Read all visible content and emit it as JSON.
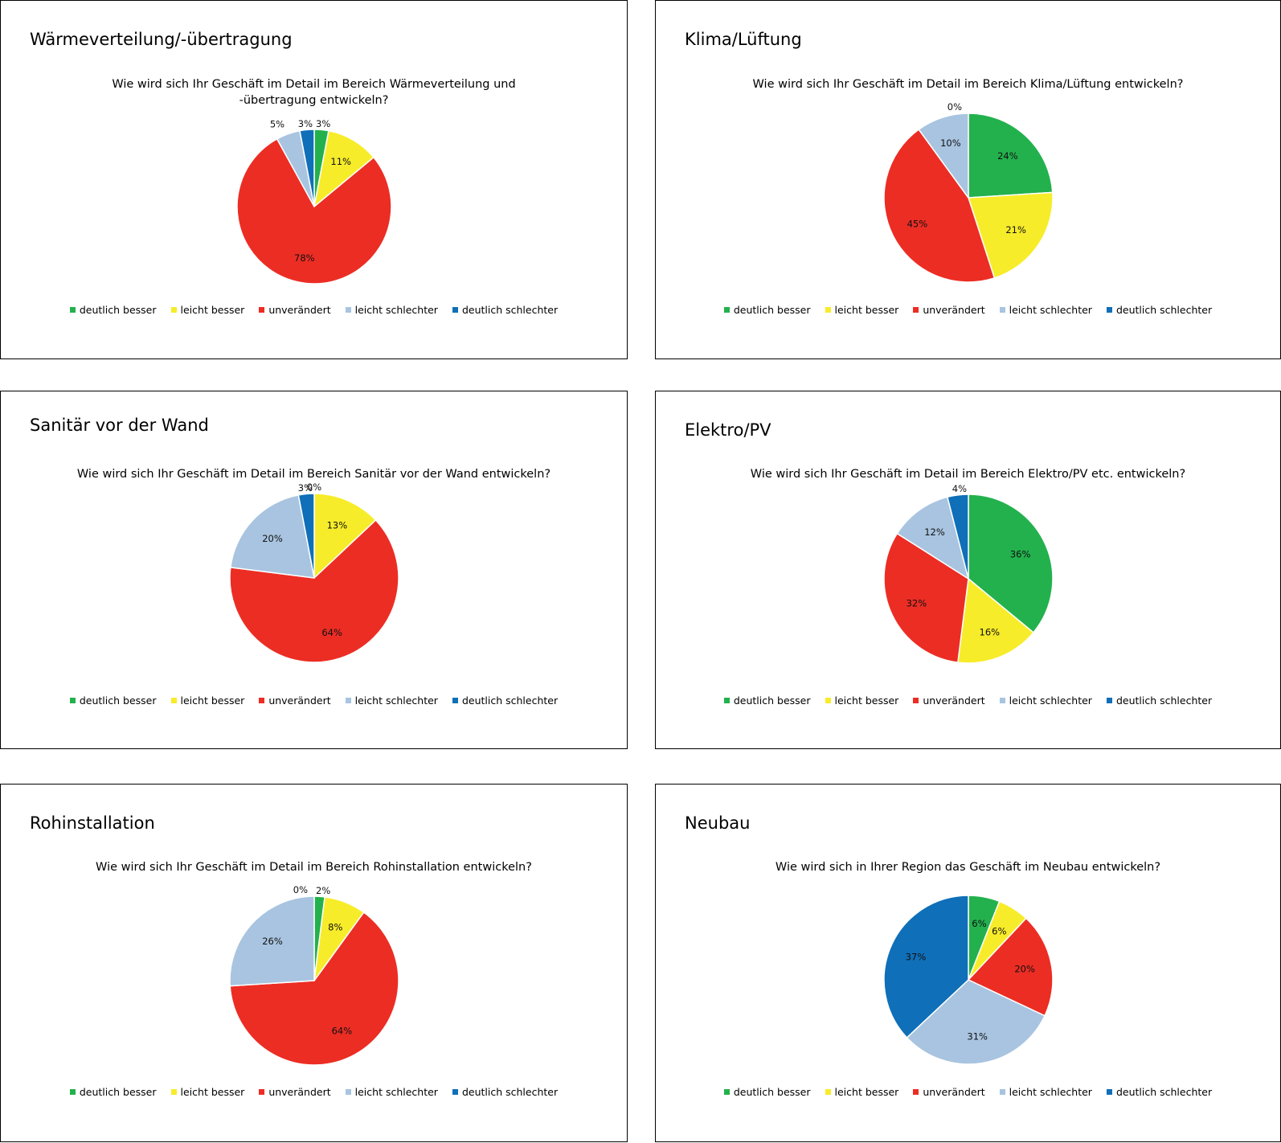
{
  "legend_labels": [
    "deutlich besser",
    "leicht besser",
    "unverändert",
    "leicht schlechter",
    "deutlich schlechter"
  ],
  "colors": [
    "#23b14d",
    "#f7ec2a",
    "#ec2d24",
    "#a8c4e0",
    "#0f6fb8"
  ],
  "panels": [
    {
      "heading": "Wärmeverteilung/-übertragung",
      "title": "Wie wird sich Ihr Geschäft im Detail im Bereich Wärmeverteilung und -übertragung entwickeln?"
    },
    {
      "heading": "Klima/Lüftung",
      "title": "Wie wird sich Ihr Geschäft im Detail im Bereich Klima/Lüftung entwickeln?"
    },
    {
      "heading": "Sanitär vor der Wand",
      "title": "Wie wird sich Ihr Geschäft im Detail im Bereich Sanitär vor der Wand entwickeln?"
    },
    {
      "heading": "Elektro/PV",
      "title": "Wie wird sich Ihr Geschäft im Detail im Bereich Elektro/PV etc. entwickeln?"
    },
    {
      "heading": "Rohinstallation",
      "title": "Wie wird sich Ihr Geschäft im Detail im Bereich Rohinstallation entwickeln?"
    },
    {
      "heading": "Neubau",
      "title": "Wie wird sich in Ihrer Region das Geschäft im Neubau entwickeln?"
    }
  ],
  "chart_data": [
    {
      "type": "pie",
      "title": "Wie wird sich Ihr Geschäft im Detail im Bereich Wärmeverteilung und -übertragung entwickeln?",
      "categories": [
        "deutlich besser",
        "leicht besser",
        "unverändert",
        "leicht schlechter",
        "deutlich schlechter"
      ],
      "values": [
        3,
        11,
        78,
        5,
        3
      ],
      "labels": [
        "3%",
        "11%",
        "78%",
        "5%",
        "3%"
      ],
      "legend": "bottom"
    },
    {
      "type": "pie",
      "title": "Wie wird sich Ihr Geschäft im Detail im Bereich Klima/Lüftung entwickeln?",
      "categories": [
        "deutlich besser",
        "leicht besser",
        "unverändert",
        "leicht schlechter",
        "deutlich schlechter"
      ],
      "values": [
        24,
        21,
        45,
        10,
        0
      ],
      "labels": [
        "24%",
        "21%",
        "45%",
        "10%",
        "0%"
      ],
      "legend": "bottom"
    },
    {
      "type": "pie",
      "title": "Wie wird sich Ihr Geschäft im Detail im Bereich Sanitär vor der Wand entwickeln?",
      "categories": [
        "deutlich besser",
        "leicht besser",
        "unverändert",
        "leicht schlechter",
        "deutlich schlechter"
      ],
      "values": [
        0,
        13,
        64,
        20,
        3
      ],
      "labels": [
        "0%",
        "13%",
        "64%",
        "20%",
        "3%"
      ],
      "legend": "bottom"
    },
    {
      "type": "pie",
      "title": "Wie wird sich Ihr Geschäft im Detail im Bereich Elektro/PV etc. entwickeln?",
      "categories": [
        "deutlich besser",
        "leicht besser",
        "unverändert",
        "leicht schlechter",
        "deutlich schlechter"
      ],
      "values": [
        36,
        16,
        32,
        12,
        4
      ],
      "labels": [
        "36%",
        "16%",
        "32%",
        "12%",
        "4%"
      ],
      "legend": "bottom"
    },
    {
      "type": "pie",
      "title": "Wie wird sich Ihr Geschäft im Detail im Bereich Rohinstallation entwickeln?",
      "categories": [
        "deutlich besser",
        "leicht besser",
        "unverändert",
        "leicht schlechter",
        "deutlich schlechter"
      ],
      "values": [
        2,
        8,
        64,
        26,
        0
      ],
      "labels": [
        "2%",
        "8%",
        "64%",
        "26%",
        "0%"
      ],
      "legend": "bottom"
    },
    {
      "type": "pie",
      "title": "Wie wird sich in Ihrer Region das Geschäft im Neubau entwickeln?",
      "categories": [
        "deutlich besser",
        "leicht besser",
        "unverändert",
        "leicht schlechter",
        "deutlich schlechter"
      ],
      "values": [
        6,
        6,
        20,
        31,
        37
      ],
      "labels": [
        "6%",
        "6%",
        "20%",
        "31%",
        "37%"
      ],
      "legend": "bottom"
    }
  ]
}
